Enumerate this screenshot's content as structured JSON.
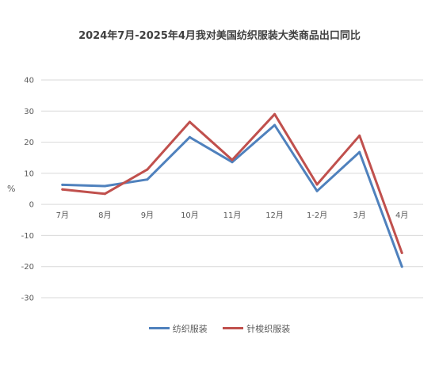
{
  "title": "2024年7月-2025年4月我对美国纺织服装大类商品出口同比",
  "colors": {
    "series1": "#4f81bd",
    "series2": "#c0504d",
    "grid": "#d9d9d9",
    "text": "#595959"
  },
  "chart_data": {
    "type": "line",
    "title": "2024年7月-2025年4月我对美国纺织服装大类商品出口同比",
    "ylabel": "%",
    "xlabel": "",
    "ylim": [
      -30,
      40
    ],
    "yticks": [
      40,
      30,
      20,
      10,
      0,
      -10,
      -20,
      -30
    ],
    "categories": [
      "7月",
      "8月",
      "9月",
      "10月",
      "11月",
      "12月",
      "1-2月",
      "3月",
      "4月"
    ],
    "grid": true,
    "legend_position": "bottom",
    "series": [
      {
        "name": "纺织服装",
        "color": "#4f81bd",
        "values": [
          6.3,
          5.9,
          8.0,
          21.6,
          13.6,
          25.5,
          4.3,
          16.8,
          -20.0
        ]
      },
      {
        "name": "针梭织服装",
        "color": "#c0504d",
        "values": [
          4.8,
          3.4,
          11.2,
          26.5,
          14.3,
          29.0,
          6.4,
          22.1,
          -15.6
        ]
      }
    ]
  }
}
